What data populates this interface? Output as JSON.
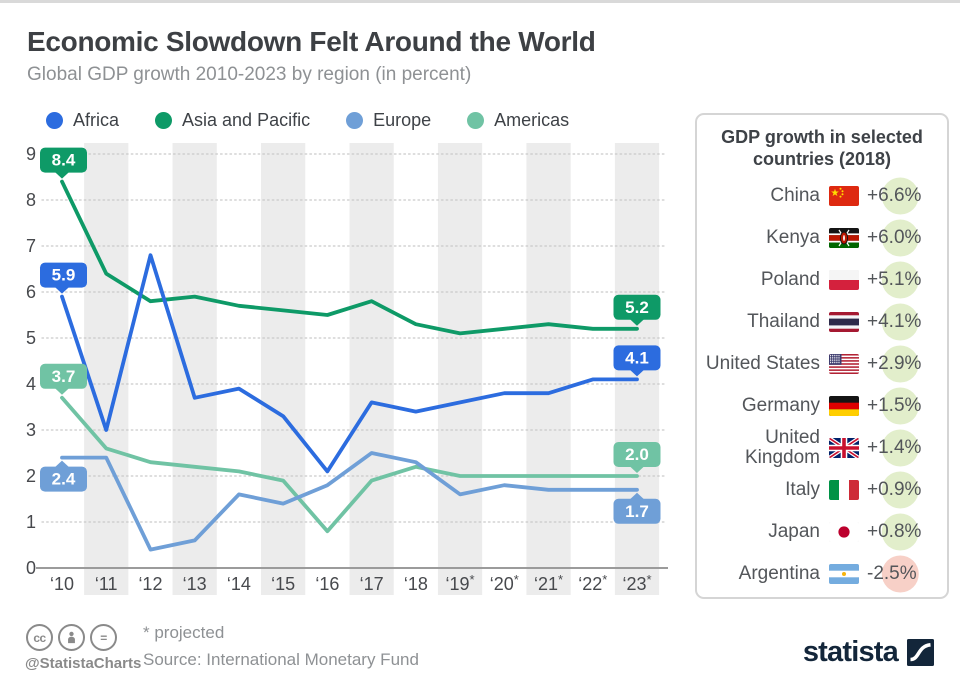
{
  "chart_data": {
    "type": "line",
    "title": "Economic Slowdown Felt Around the World",
    "subtitle": "Global GDP growth 2010-2023 by region (in percent)",
    "x_labels": [
      "‘10",
      "‘11",
      "‘12",
      "‘13",
      "‘14",
      "‘15",
      "‘16",
      "‘17",
      "‘18",
      "‘19*",
      "‘20*",
      "‘21*",
      "‘22*",
      "‘23*"
    ],
    "y_ticks": [
      0,
      1,
      2,
      3,
      4,
      5,
      6,
      7,
      8,
      9
    ],
    "ylim": [
      0,
      9
    ],
    "grid": "horizontal-dotted",
    "legend_position": "top",
    "projected_note": "* projected",
    "series": [
      {
        "name": "Americas",
        "color": "#70c3a4",
        "values": [
          3.7,
          2.6,
          2.3,
          2.2,
          2.1,
          1.9,
          0.8,
          1.9,
          2.2,
          2.0,
          2.0,
          2.0,
          2.0,
          2.0
        ],
        "start_label": "3.7",
        "start_label_pos": "above",
        "end_label": "2.0",
        "end_label_pos": "above"
      },
      {
        "name": "Europe",
        "color": "#6f9fd7",
        "values": [
          2.4,
          2.4,
          0.4,
          0.6,
          1.6,
          1.4,
          1.8,
          2.5,
          2.3,
          1.6,
          1.8,
          1.7,
          1.7,
          1.7
        ],
        "start_label": "2.4",
        "start_label_pos": "below",
        "end_label": "1.7",
        "end_label_pos": "below"
      },
      {
        "name": "Asia and Pacific",
        "color": "#0e9a67",
        "values": [
          8.4,
          6.4,
          5.8,
          5.9,
          5.7,
          5.6,
          5.5,
          5.8,
          5.3,
          5.1,
          5.2,
          5.3,
          5.2,
          5.2
        ],
        "start_label": "8.4",
        "start_label_pos": "above",
        "end_label": "5.2",
        "end_label_pos": "above"
      },
      {
        "name": "Africa",
        "color": "#2c6cdf",
        "values": [
          5.9,
          3.0,
          6.8,
          3.7,
          3.9,
          3.3,
          2.1,
          3.6,
          3.4,
          3.6,
          3.8,
          3.8,
          4.1,
          4.1
        ],
        "start_label": "5.9",
        "start_label_pos": "above",
        "end_label": "4.1",
        "end_label_pos": "above"
      }
    ],
    "legend_order": [
      "Africa",
      "Asia and Pacific",
      "Europe",
      "Americas"
    ]
  },
  "side_panel": {
    "title": "GDP growth in selected countries (2018)",
    "rows": [
      {
        "country": "China",
        "flag": "china",
        "value": "+6.6%",
        "highlight": "positive"
      },
      {
        "country": "Kenya",
        "flag": "kenya",
        "value": "+6.0%",
        "highlight": "positive"
      },
      {
        "country": "Poland",
        "flag": "poland",
        "value": "+5.1%",
        "highlight": "positive"
      },
      {
        "country": "Thailand",
        "flag": "thailand",
        "value": "+4.1%",
        "highlight": "positive"
      },
      {
        "country": "United States",
        "flag": "usa",
        "value": "+2.9%",
        "highlight": "positive"
      },
      {
        "country": "Germany",
        "flag": "germany",
        "value": "+1.5%",
        "highlight": "positive"
      },
      {
        "country": "United Kingdom",
        "flag": "uk",
        "value": "+1.4%",
        "highlight": "positive"
      },
      {
        "country": "Italy",
        "flag": "italy",
        "value": "+0.9%",
        "highlight": "positive"
      },
      {
        "country": "Japan",
        "flag": "japan",
        "value": "+0.8%",
        "highlight": "positive"
      },
      {
        "country": "Argentina",
        "flag": "argentina",
        "value": "-2.5%",
        "highlight": "negative"
      }
    ],
    "highlight_colors": {
      "positive": "#e2eecb",
      "negative": "#f7d0c7"
    }
  },
  "footer": {
    "cc_icons": [
      "cc",
      "attribution",
      "nd"
    ],
    "handle": "@StatistaCharts",
    "note": "* projected",
    "source": "Source: International Monetary Fund",
    "brand": "statista"
  },
  "theme": {
    "band_color": "#ececec",
    "gridline_color": "#c9c9c9",
    "axis_color": "#9b9b9b",
    "axis_text_color": "#47494d",
    "title_color": "#3d4044",
    "muted_text_color": "#8e9194",
    "brand_navy": "#13263a"
  }
}
